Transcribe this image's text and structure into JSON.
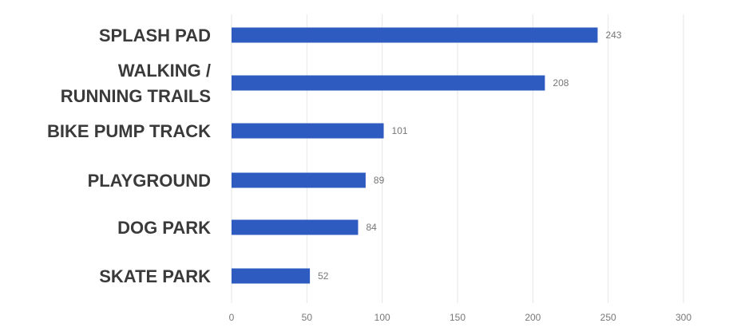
{
  "chart_data": {
    "type": "bar",
    "orientation": "horizontal",
    "categories": [
      [
        "SPLASH PAD"
      ],
      [
        "WALKING /",
        "RUNNING TRAILS"
      ],
      [
        "BIKE PUMP TRACK"
      ],
      [
        "PLAYGROUND"
      ],
      [
        "DOG PARK"
      ],
      [
        "SKATE PARK"
      ]
    ],
    "values": [
      243,
      208,
      101,
      89,
      84,
      52
    ],
    "data_labels": [
      "243",
      "208",
      "101",
      "89",
      "84",
      "52"
    ],
    "xlim": [
      0,
      300
    ],
    "xticks": [
      0,
      50,
      100,
      150,
      200,
      250,
      300
    ],
    "grid": "vertical",
    "legend": "none",
    "bar_color": "#2e5bbf"
  }
}
